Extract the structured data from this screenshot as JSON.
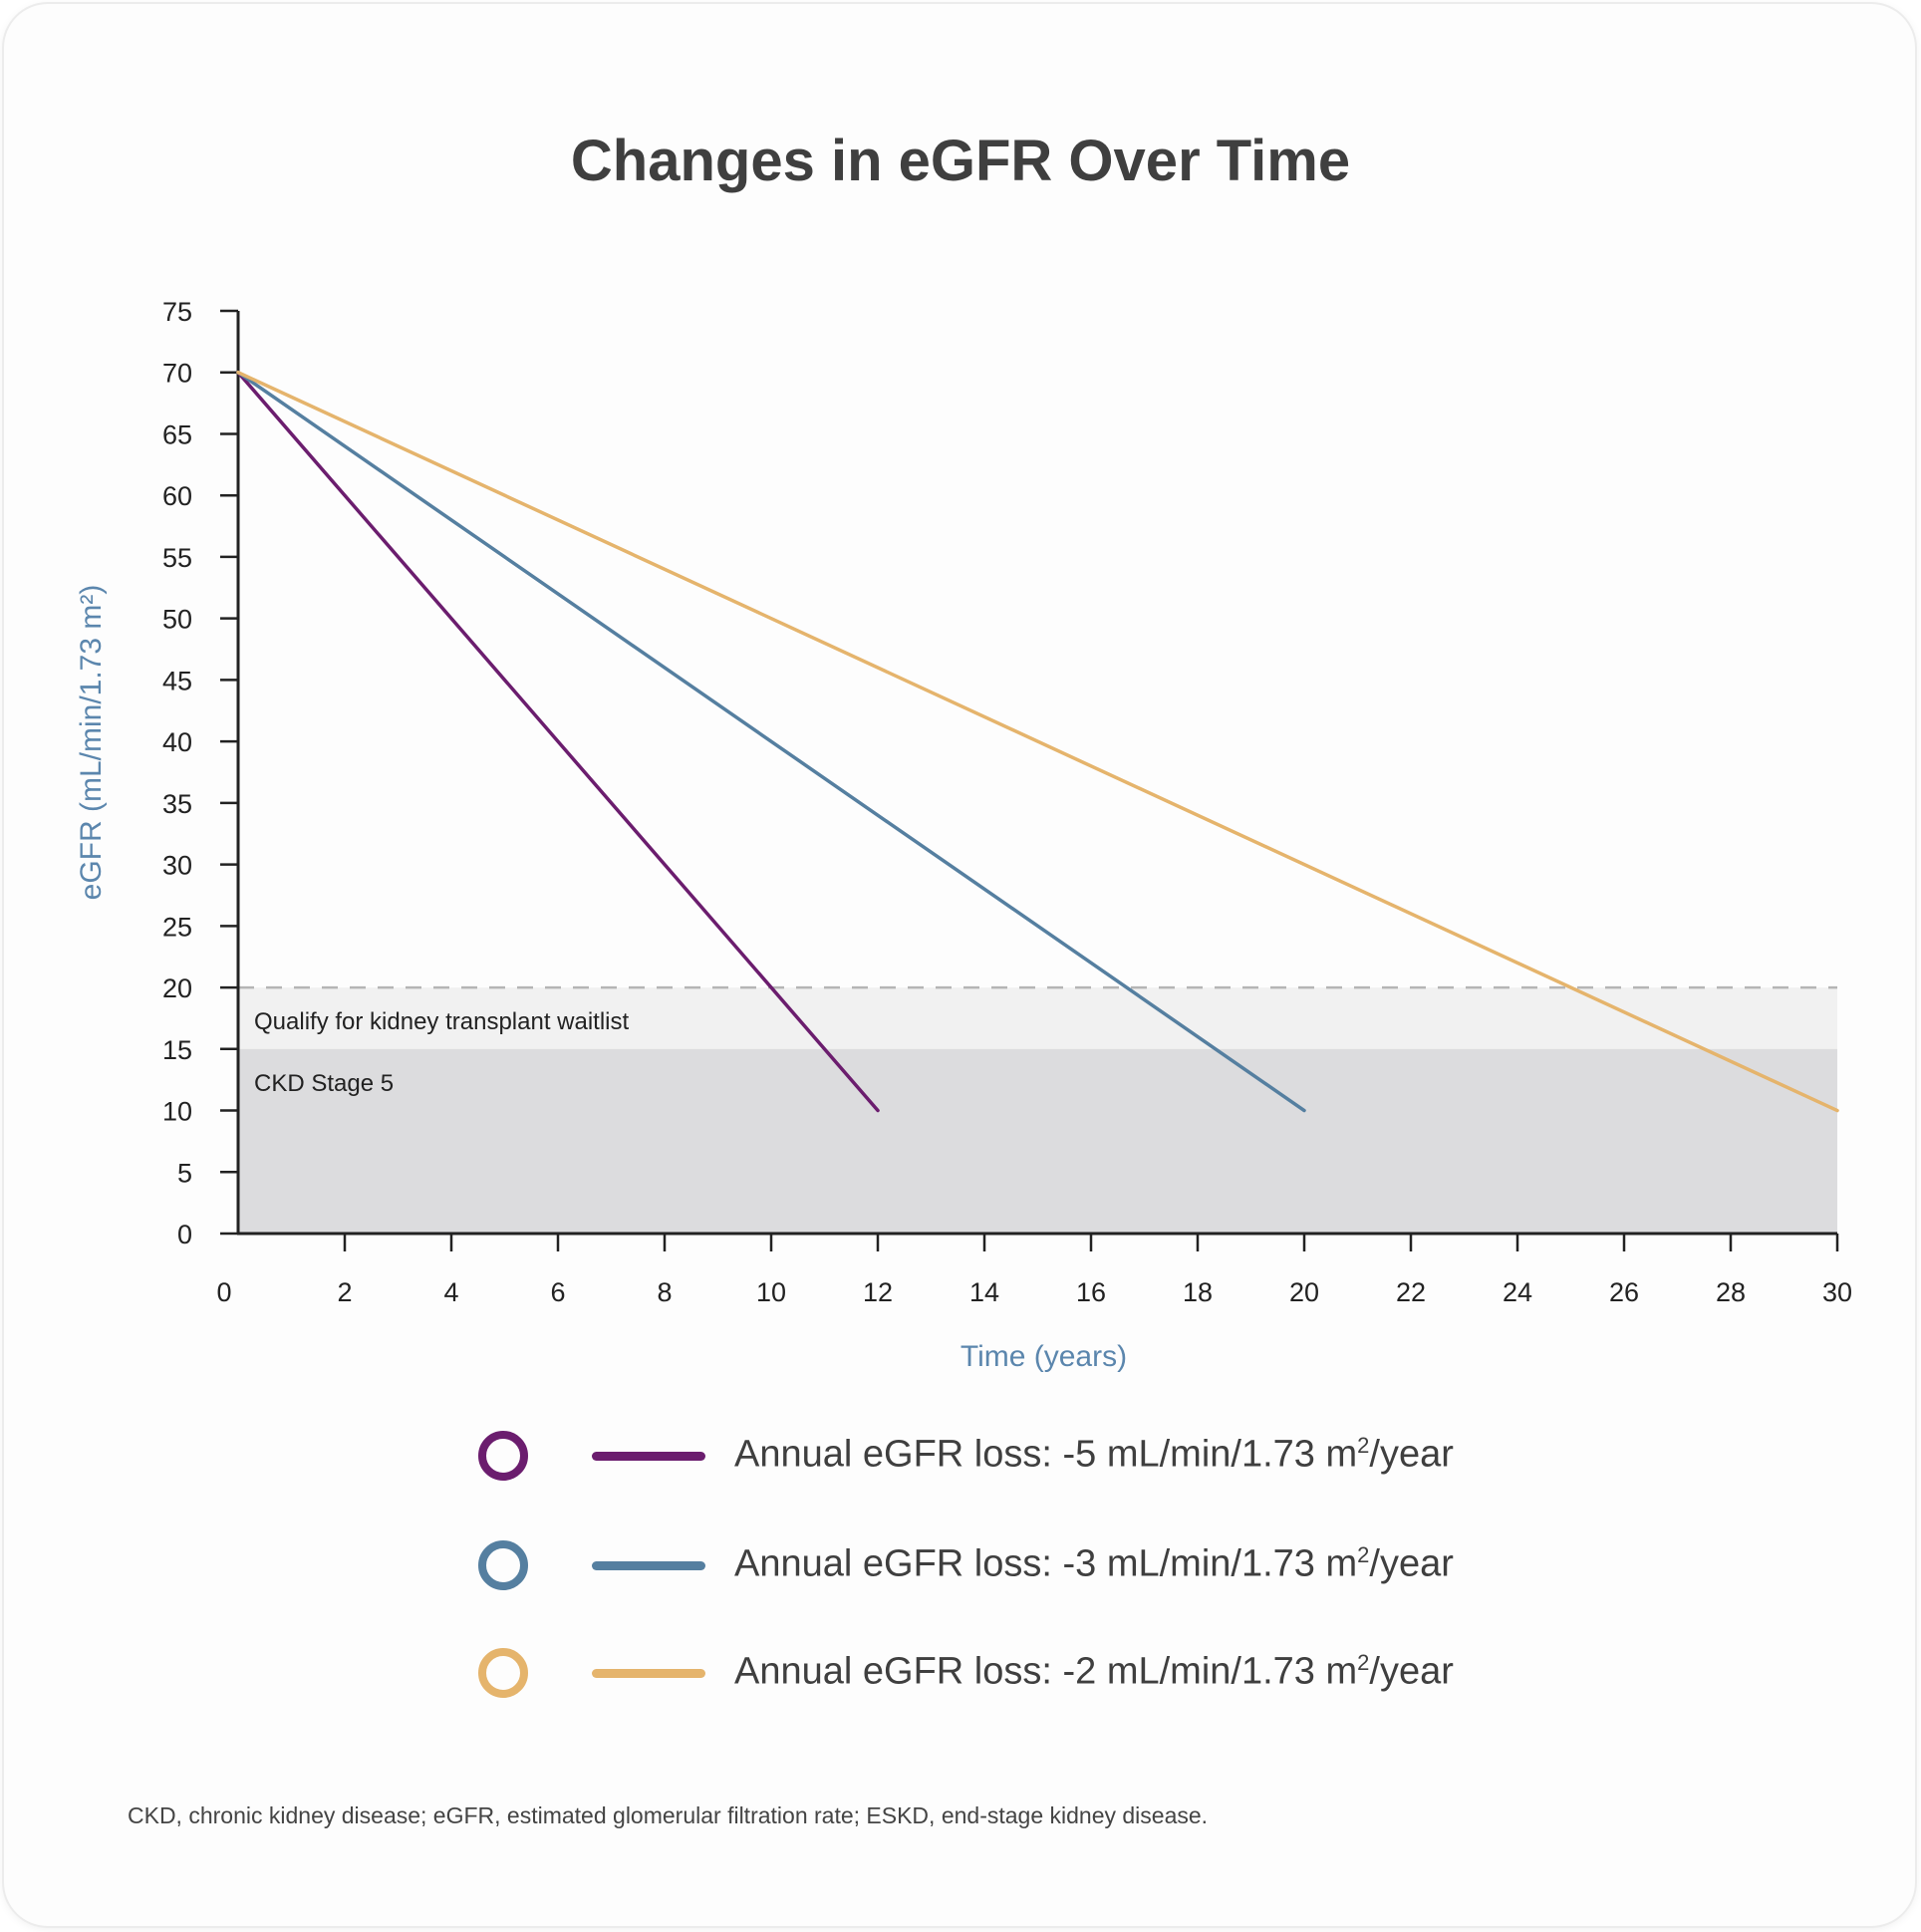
{
  "chart_data": {
    "type": "line",
    "title": "Changes in eGFR Over Time",
    "xlabel": "Time (years)",
    "ylabel": "eGFR (mL/min/1.73 m²)",
    "xlim": [
      0,
      30
    ],
    "ylim": [
      0,
      75
    ],
    "x_ticks": [
      0,
      2,
      4,
      6,
      8,
      10,
      12,
      14,
      16,
      18,
      20,
      22,
      24,
      26,
      28,
      30
    ],
    "y_ticks": [
      0,
      5,
      10,
      15,
      20,
      25,
      30,
      35,
      40,
      45,
      50,
      55,
      60,
      65,
      70,
      75
    ],
    "series": [
      {
        "name": "Annual eGFR loss: -5 mL/min/1.73 m²/year",
        "label_prefix": "Annual eGFR loss: -5 mL/min/1.73 m",
        "label_sup": "2",
        "label_suffix": "/year",
        "color": "#6b1d6e",
        "points": [
          [
            0,
            70
          ],
          [
            12,
            10
          ]
        ]
      },
      {
        "name": "Annual eGFR loss: -3 mL/min/1.73 m²/year",
        "label_prefix": "Annual eGFR loss: -3 mL/min/1.73 m",
        "label_sup": "2",
        "label_suffix": "/year",
        "color": "#557fa0",
        "points": [
          [
            0,
            70
          ],
          [
            20,
            10
          ]
        ]
      },
      {
        "name": "Annual eGFR loss: -2 mL/min/1.73 m²/year",
        "label_prefix": "Annual eGFR loss: -2 mL/min/1.73 m",
        "label_sup": "2",
        "label_suffix": "/year",
        "color": "#e5b46c",
        "points": [
          [
            0,
            70
          ],
          [
            30,
            10
          ]
        ]
      }
    ],
    "bands": [
      {
        "label": "Qualify for kidney transplant waitlist",
        "y_range": [
          15,
          20
        ],
        "color": "#f1f1f1"
      },
      {
        "label": "CKD Stage 5",
        "y_range": [
          0,
          15
        ],
        "color": "#dcdcde"
      }
    ],
    "reference_line": {
      "y": 20,
      "style": "dashed",
      "color": "#b5b5b5"
    },
    "grid": false,
    "legend_position": "bottom"
  },
  "footnote": "CKD, chronic kidney disease; eGFR, estimated glomerular filtration rate; ESKD, end-stage kidney disease."
}
